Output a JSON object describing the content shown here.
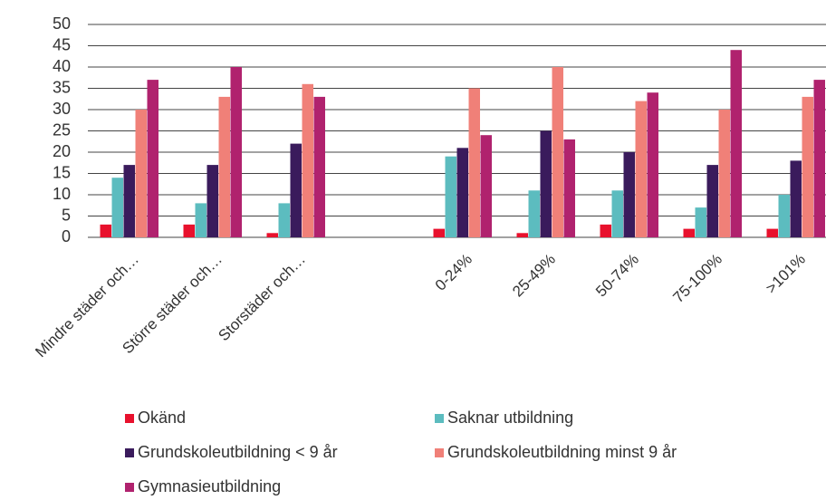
{
  "chart_data": {
    "type": "bar",
    "categories": [
      "Mindre städer och…",
      "Större städer och…",
      "Storstäder och…",
      null,
      "0-24%",
      "25-49%",
      "50-74%",
      "75-100%",
      ">101%"
    ],
    "series": [
      {
        "name": "Okänd",
        "color": "#e8112d",
        "values": [
          3,
          3,
          1,
          null,
          2,
          1,
          3,
          2,
          2
        ]
      },
      {
        "name": "Saknar utbildning",
        "color": "#5cbcbf",
        "values": [
          14,
          8,
          8,
          null,
          19,
          11,
          11,
          7,
          10
        ]
      },
      {
        "name": "Grundskoleutbildning < 9 år",
        "color": "#3a1b5c",
        "values": [
          17,
          17,
          22,
          null,
          21,
          25,
          20,
          17,
          18
        ]
      },
      {
        "name": "Grundskoleutbildning minst 9 år",
        "color": "#f08078",
        "values": [
          30,
          33,
          36,
          null,
          35,
          40,
          32,
          30,
          33
        ]
      },
      {
        "name": "Gymnasieutbildning",
        "color": "#b0226e",
        "values": [
          37,
          40,
          33,
          null,
          24,
          23,
          34,
          44,
          37
        ]
      }
    ],
    "ylim": [
      0,
      50
    ],
    "yticks": [
      0,
      5,
      10,
      15,
      20,
      25,
      30,
      35,
      40,
      45,
      50
    ],
    "grid": true
  }
}
